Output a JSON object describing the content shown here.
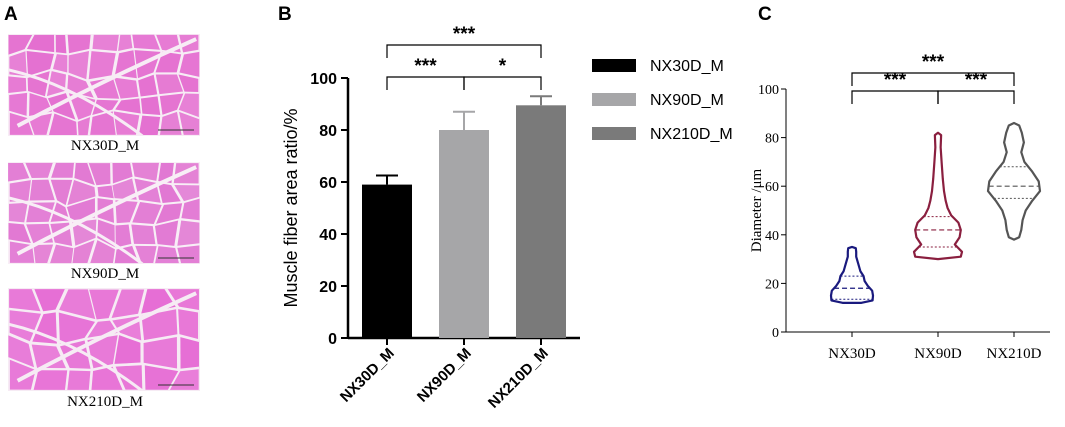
{
  "panel_a": {
    "letter": "A",
    "images": [
      {
        "caption": "NX30D_M",
        "tissue_color": "#e46fd0",
        "gap_color": "#f7ecf5"
      },
      {
        "caption": "NX90D_M",
        "tissue_color": "#e176d2",
        "gap_color": "#f8eef6"
      },
      {
        "caption": "NX210D_M",
        "tissue_color": "#e66cd4",
        "gap_color": "#f6ebf4"
      }
    ]
  },
  "chart_data": [
    {
      "panel": "B",
      "type": "bar",
      "ylabel": "Muscle fiber area ratio/%",
      "ylim": [
        0,
        100
      ],
      "yticks": [
        0,
        20,
        40,
        60,
        80,
        100
      ],
      "categories": [
        "NX30D_M",
        "NX90D_M",
        "NX210D_M"
      ],
      "values": [
        59,
        80,
        89.5
      ],
      "errors": [
        3.5,
        7,
        3.5
      ],
      "colors": [
        "#000000",
        "#a6a6a8",
        "#7a7a7a"
      ],
      "legend": {
        "placement": "right",
        "entries": [
          {
            "label": "NX30D_M",
            "color": "#000000"
          },
          {
            "label": "NX90D_M",
            "color": "#a6a6a8"
          },
          {
            "label": "NX210D_M",
            "color": "#7a7a7a"
          }
        ]
      },
      "significance": [
        {
          "from": 0,
          "to": 1,
          "label": "***"
        },
        {
          "from": 1,
          "to": 2,
          "label": "*"
        },
        {
          "from": 0,
          "to": 2,
          "label": "***"
        }
      ]
    },
    {
      "panel": "C",
      "type": "violin",
      "ylabel": "Diameter /μm",
      "ylim": [
        0,
        100
      ],
      "yticks": [
        0,
        20,
        40,
        60,
        80,
        100
      ],
      "categories": [
        "NX30D",
        "NX90D",
        "NX210D"
      ],
      "colors": [
        "#1a1a7e",
        "#8a1f3f",
        "#555555"
      ],
      "violins": [
        {
          "name": "NX30D",
          "min": 12,
          "max": 35,
          "q1": 13.5,
          "median": 18,
          "q3": 23,
          "profile": [
            [
              12,
              0.45
            ],
            [
              13,
              0.98
            ],
            [
              15,
              1.0
            ],
            [
              17,
              0.96
            ],
            [
              19,
              0.75
            ],
            [
              21,
              0.6
            ],
            [
              23,
              0.55
            ],
            [
              25,
              0.4
            ],
            [
              28,
              0.3
            ],
            [
              31,
              0.2
            ],
            [
              33,
              0.2
            ],
            [
              34.5,
              0.18
            ],
            [
              35,
              0.0
            ]
          ]
        },
        {
          "name": "NX90D",
          "min": 30,
          "max": 82,
          "q1": 35,
          "median": 42,
          "q3": 47.5,
          "profile": [
            [
              30,
              0.0
            ],
            [
              31,
              0.95
            ],
            [
              33,
              1.0
            ],
            [
              36,
              0.7
            ],
            [
              39,
              0.9
            ],
            [
              42,
              0.95
            ],
            [
              45,
              0.85
            ],
            [
              48,
              0.55
            ],
            [
              51,
              0.4
            ],
            [
              54,
              0.32
            ],
            [
              58,
              0.25
            ],
            [
              63,
              0.2
            ],
            [
              70,
              0.15
            ],
            [
              76,
              0.11
            ],
            [
              81,
              0.13
            ],
            [
              82,
              0.0
            ]
          ]
        },
        {
          "name": "NX210D",
          "min": 38,
          "max": 86,
          "q1": 55,
          "median": 60,
          "q3": 68,
          "profile": [
            [
              38,
              0.0
            ],
            [
              39,
              0.2
            ],
            [
              42,
              0.28
            ],
            [
              46,
              0.33
            ],
            [
              50,
              0.45
            ],
            [
              54,
              0.7
            ],
            [
              58,
              1.0
            ],
            [
              62,
              0.95
            ],
            [
              66,
              0.7
            ],
            [
              70,
              0.4
            ],
            [
              74,
              0.28
            ],
            [
              78,
              0.38
            ],
            [
              82,
              0.3
            ],
            [
              85,
              0.2
            ],
            [
              86,
              0.0
            ]
          ]
        }
      ],
      "significance": [
        {
          "from": 0,
          "to": 1,
          "label": "***"
        },
        {
          "from": 1,
          "to": 2,
          "label": "***"
        },
        {
          "from": 0,
          "to": 2,
          "label": "***"
        }
      ]
    }
  ]
}
